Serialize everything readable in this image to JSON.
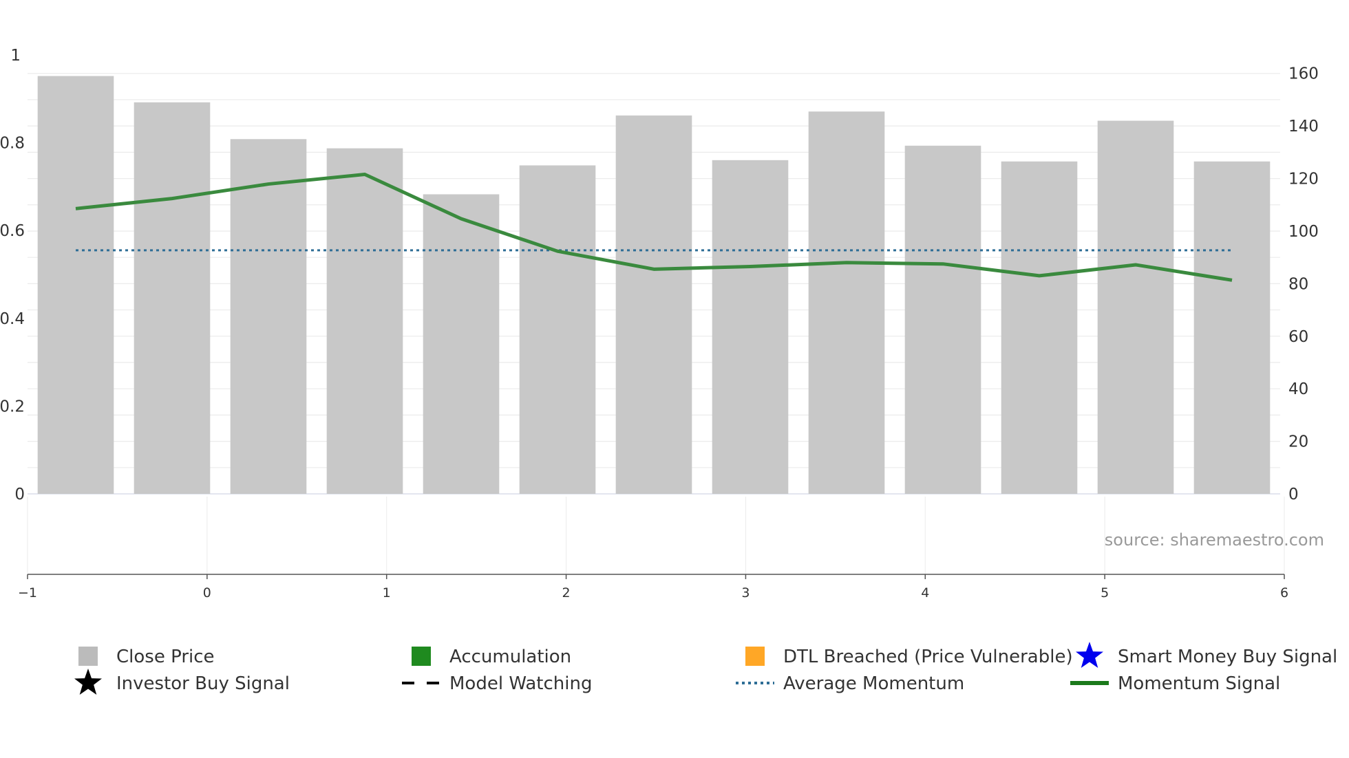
{
  "chart_data": {
    "type": "bar",
    "title": "",
    "source_note": "source: sharemaestro.com",
    "x_ticks": [
      "−1",
      "0",
      "1",
      "2",
      "3",
      "4",
      "5",
      "6"
    ],
    "y_left": {
      "ticks": [
        "0",
        "0.2",
        "0.4",
        "0.6",
        "0.8",
        "1"
      ],
      "range": [
        0,
        1
      ]
    },
    "y_right": {
      "ticks": [
        "0",
        "20",
        "40",
        "60",
        "80",
        "100",
        "120",
        "140",
        "160"
      ],
      "range": [
        0,
        167
      ]
    },
    "series": [
      {
        "name": "Close Price",
        "type": "bar",
        "axis": "right",
        "color": "#c8c8c8",
        "values": [
          159,
          149,
          135,
          131.5,
          114,
          125,
          144,
          127,
          145.5,
          132.5,
          126.5,
          142,
          126.5
        ]
      },
      {
        "name": "Momentum Signal",
        "type": "line",
        "axis": "left",
        "color": "#3a8a3e",
        "values": [
          0.65,
          0.673,
          0.706,
          0.728,
          0.627,
          0.553,
          0.512,
          0.518,
          0.527,
          0.524,
          0.497,
          0.522,
          0.487
        ]
      },
      {
        "name": "Average Momentum",
        "type": "line",
        "axis": "left",
        "color": "#2e6e96",
        "style": "dotted",
        "values": [
          0.555,
          0.555,
          0.555,
          0.555,
          0.555,
          0.555,
          0.555,
          0.555,
          0.555,
          0.555,
          0.555,
          0.555,
          0.555
        ]
      }
    ],
    "legend": [
      {
        "label": "Close Price",
        "marker": "square",
        "color": "#bbbbbb"
      },
      {
        "label": "Accumulation",
        "marker": "square",
        "color": "#1f8a1f"
      },
      {
        "label": "DTL Breached (Price Vulnerable)",
        "marker": "square",
        "color": "#ffa726"
      },
      {
        "label": "Smart Money Buy Signal",
        "marker": "star",
        "color": "#0000ee"
      },
      {
        "label": "Investor Buy Signal",
        "marker": "star",
        "color": "#000000"
      },
      {
        "label": "Model Watching",
        "marker": "dashed-line",
        "color": "#000000"
      },
      {
        "label": "Average Momentum",
        "marker": "dotted-line",
        "color": "#2e6e96"
      },
      {
        "label": "Momentum Signal",
        "marker": "solid-line",
        "color": "#1b7a1b"
      }
    ]
  }
}
